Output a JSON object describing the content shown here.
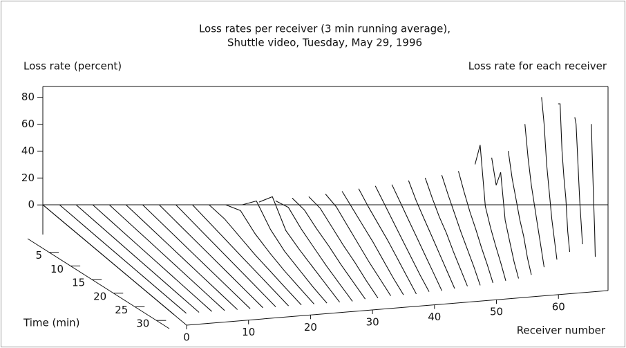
{
  "chart_data": {
    "type": "waterfall3d",
    "title": "Loss rates per receiver (3 min running average),",
    "subtitle": "Shuttle video, Tuesday, May 29, 1996",
    "ylabel": "Loss rate (percent)",
    "annotation": "Loss rate for each receiver",
    "xlabel": "Time (min)",
    "zlabel": "Receiver number",
    "x": [
      0,
      5,
      10,
      15,
      20,
      25,
      30
    ],
    "xlim": [
      0,
      33
    ],
    "xticks": [
      5,
      10,
      15,
      20,
      25,
      30
    ],
    "zlim": [
      0,
      68
    ],
    "zticks": [
      0,
      10,
      20,
      30,
      40,
      50,
      60
    ],
    "ylim": [
      -22,
      88
    ],
    "yticks": [
      0,
      20,
      40,
      60,
      80
    ],
    "color": "#111111",
    "series": [
      {
        "z": 0,
        "values": [
          0,
          0,
          0,
          0,
          0,
          0,
          0
        ]
      },
      {
        "z": 2,
        "values": [
          0,
          0,
          0,
          0,
          0,
          0,
          0
        ]
      },
      {
        "z": 4,
        "values": [
          0,
          0,
          0,
          0,
          0,
          0,
          0
        ]
      },
      {
        "z": 6,
        "values": [
          0,
          0,
          0,
          0,
          0,
          0,
          0
        ]
      },
      {
        "z": 8,
        "values": [
          0,
          0,
          0,
          0,
          0,
          0,
          0
        ]
      },
      {
        "z": 10,
        "values": [
          0,
          0,
          0,
          0,
          0,
          0,
          0
        ]
      },
      {
        "z": 12,
        "values": [
          0,
          0,
          0,
          0,
          0,
          0,
          0
        ]
      },
      {
        "z": 14,
        "values": [
          0,
          0,
          0,
          0,
          0,
          0,
          0
        ]
      },
      {
        "z": 16,
        "values": [
          0,
          0,
          0,
          0,
          0,
          0,
          0
        ]
      },
      {
        "z": 18,
        "values": [
          0,
          0,
          0,
          0,
          0,
          0,
          0
        ]
      },
      {
        "z": 20,
        "values": [
          0,
          2,
          1,
          0,
          0,
          0,
          0
        ]
      },
      {
        "z": 22,
        "values": [
          0,
          8,
          3,
          1,
          0,
          0,
          0
        ]
      },
      {
        "z": 24,
        "values": [
          0,
          15,
          6,
          2,
          1,
          0,
          0
        ]
      },
      {
        "z": 26,
        "values": [
          2,
          18,
          5,
          3,
          2,
          1,
          0
        ]
      },
      {
        "z": 28,
        "values": [
          3,
          10,
          6,
          4,
          2,
          1,
          0
        ]
      },
      {
        "z": 30,
        "values": [
          5,
          8,
          6,
          5,
          3,
          2,
          1
        ]
      },
      {
        "z": 32,
        "values": [
          6,
          9,
          7,
          5,
          4,
          2,
          1
        ]
      },
      {
        "z": 34,
        "values": [
          8,
          10,
          8,
          6,
          4,
          3,
          2
        ]
      },
      {
        "z": 36,
        "values": [
          10,
          9,
          8,
          7,
          5,
          3,
          2
        ]
      },
      {
        "z": 38,
        "values": [
          12,
          10,
          9,
          8,
          6,
          4,
          2
        ]
      },
      {
        "z": 40,
        "values": [
          14,
          12,
          10,
          8,
          6,
          4,
          3
        ]
      },
      {
        "z": 42,
        "values": [
          15,
          13,
          11,
          9,
          7,
          5,
          3
        ]
      },
      {
        "z": 44,
        "values": [
          18,
          14,
          12,
          10,
          8,
          6,
          4
        ]
      },
      {
        "z": 46,
        "values": [
          20,
          16,
          13,
          12,
          9,
          7,
          5
        ]
      },
      {
        "z": 48,
        "values": [
          22,
          18,
          15,
          12,
          10,
          8,
          5
        ]
      },
      {
        "z": 50,
        "values": [
          25,
          20,
          16,
          14,
          11,
          9,
          6
        ]
      },
      {
        "z": 52,
        "values": [
          30,
          55,
          20,
          15,
          12,
          10,
          7
        ]
      },
      {
        "z": 54,
        "values": [
          35,
          25,
          45,
          20,
          15,
          10,
          8
        ]
      },
      {
        "z": 56,
        "values": [
          40,
          30,
          25,
          20,
          18,
          12,
          10
        ]
      },
      {
        "z": 58,
        "values": [
          60,
          45,
          35,
          30,
          25,
          20,
          15
        ]
      },
      {
        "z": 60,
        "values": [
          80,
          70,
          50,
          40,
          30,
          25,
          20
        ]
      },
      {
        "z": 62,
        "values": [
          75,
          85,
          60,
          50,
          45,
          30,
          25
        ]
      },
      {
        "z": 64,
        "values": [
          65,
          70,
          60,
          50,
          40,
          35,
          30
        ]
      },
      {
        "z": 66,
        "values": [
          60,
          50,
          45,
          40,
          35,
          30,
          20
        ]
      }
    ]
  }
}
